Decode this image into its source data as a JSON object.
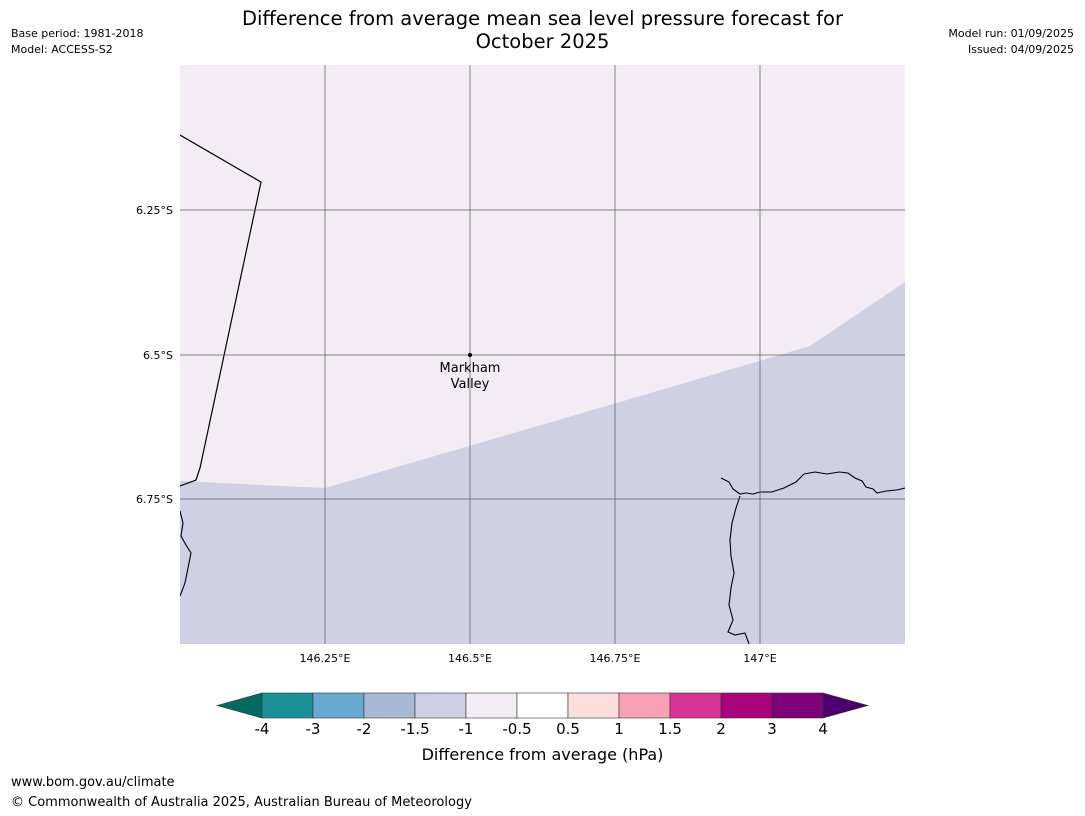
{
  "header": {
    "title_line1": "Difference from average mean sea level pressure forecast for",
    "title_line2": "October 2025",
    "base_period": "Base period: 1981-2018",
    "model": "Model: ACCESS-S2",
    "model_run": "Model run: 01/09/2025",
    "issued": "Issued: 04/09/2025"
  },
  "map": {
    "lat_ticks": [
      "6.25°S",
      "6.5°S",
      "6.75°S"
    ],
    "lon_ticks": [
      "146.25°E",
      "146.5°E",
      "146.75°E",
      "147°E"
    ],
    "location": {
      "name_line1": "Markham",
      "name_line2": "Valley"
    },
    "fill_colors": {
      "-1 to -0.5": "#f3ecf5",
      "-1.5 to -1": "#d0d0e5"
    }
  },
  "colorbar": {
    "label": "Difference from average (hPa)",
    "ticks": [
      "-4",
      "-3",
      "-2",
      "-1.5",
      "-1",
      "-0.5",
      "0.5",
      "1",
      "1.5",
      "2",
      "3",
      "4"
    ],
    "under_color": "#036a5f",
    "over_color": "#4b006e",
    "colors": [
      "#1b9097",
      "#68a9d1",
      "#a8b9d5",
      "#d0d0e5",
      "#f3ecf5",
      "#ffffff",
      "#fcdedc",
      "#f8a0b5",
      "#d93595",
      "#aa017d",
      "#7d0179"
    ]
  },
  "footer": {
    "url": "www.bom.gov.au/climate",
    "copyright": "© Commonwealth of Australia 2025, Australian Bureau of Meteorology"
  }
}
